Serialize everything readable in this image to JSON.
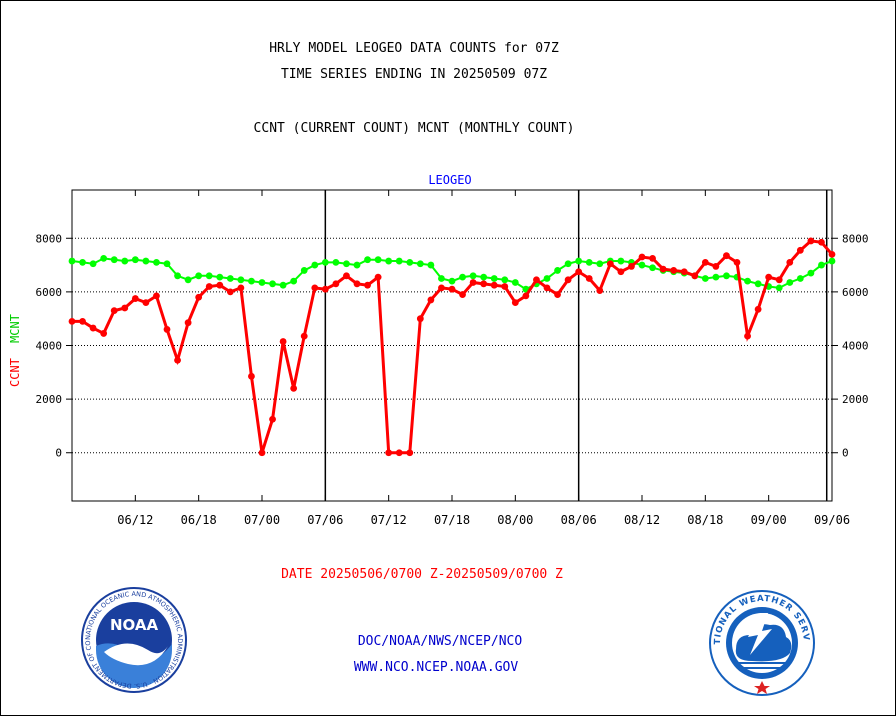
{
  "header": {
    "line1": "HRLY MODEL LEOGEO DATA COUNTS for 07Z",
    "line2": "TIME SERIES ENDING IN 20250509 07Z",
    "line3": "CCNT (CURRENT COUNT) MCNT (MONTHLY COUNT)"
  },
  "chart_data": {
    "type": "line",
    "title": "LEOGEO",
    "ylabel_ccnt": "CCNT",
    "ylabel_mcnt": "MCNT",
    "ylim": [
      -1800,
      9800
    ],
    "yticks": [
      0,
      2000,
      4000,
      6000,
      8000
    ],
    "ytick_labels": [
      "0",
      "2000",
      "4000",
      "6000",
      "8000"
    ],
    "xlim": [
      0,
      72
    ],
    "xticks": [
      6,
      12,
      18,
      24,
      30,
      36,
      42,
      48,
      54,
      60,
      66,
      72
    ],
    "xtick_labels": [
      "06/12",
      "06/18",
      "07/00",
      "07/06",
      "07/12",
      "07/18",
      "08/00",
      "08/06",
      "08/12",
      "08/18",
      "09/00",
      "09/06"
    ],
    "day_boundaries": [
      24,
      48,
      71.5
    ],
    "grid": true,
    "series": [
      {
        "name": "CCNT",
        "color": "#ff0000",
        "values": [
          4900,
          4900,
          4650,
          4450,
          5300,
          5400,
          5750,
          5600,
          5850,
          4600,
          3450,
          4850,
          5800,
          6200,
          6250,
          6000,
          6150,
          2850,
          0,
          1250,
          4150,
          2400,
          4350,
          6150,
          6100,
          6300,
          6600,
          6300,
          6250,
          6550,
          0,
          0,
          0,
          5000,
          5700,
          6150,
          6100,
          5900,
          6350,
          6300,
          6250,
          6200,
          5600,
          5850,
          6450,
          6150,
          5900,
          6450,
          6750,
          6500,
          6050,
          7050,
          6750,
          6950,
          7300,
          7250,
          6850,
          6800,
          6750,
          6600,
          7100,
          6950,
          7350,
          7100,
          4350,
          5350,
          6550,
          6450,
          7100,
          7550,
          7900,
          7850,
          7400
        ]
      },
      {
        "name": "MCNT",
        "color": "#00ff00",
        "values": [
          7150,
          7100,
          7050,
          7250,
          7200,
          7150,
          7200,
          7150,
          7100,
          7050,
          6600,
          6450,
          6600,
          6600,
          6550,
          6500,
          6450,
          6400,
          6350,
          6300,
          6250,
          6400,
          6800,
          7000,
          7100,
          7100,
          7050,
          7000,
          7200,
          7200,
          7150,
          7150,
          7100,
          7050,
          7000,
          6500,
          6400,
          6550,
          6600,
          6550,
          6500,
          6450,
          6350,
          6100,
          6300,
          6500,
          6800,
          7050,
          7150,
          7100,
          7050,
          7150,
          7150,
          7100,
          7000,
          6900,
          6800,
          6750,
          6700,
          6600,
          6500,
          6550,
          6600,
          6550,
          6400,
          6300,
          6200,
          6150,
          6350,
          6500,
          6700,
          7000,
          7150
        ]
      }
    ]
  },
  "footer": {
    "date_range": "DATE 20250506/0700 Z-20250509/0700 Z",
    "link_path": "DOC/NOAA/NWS/NCEP/NCO",
    "link_site": "WWW.NCO.NCEP.NOAA.GOV",
    "noaa_badge": "NOAA",
    "noaa_ring_text": "NATIONAL OCEANIC AND ATMOSPHERIC ADMINISTRATION · U.S. DEPARTMENT OF COMMERCE ·",
    "nws_ring_text": "NATIONAL WEATHER SERVICE"
  },
  "colors": {
    "ccnt": "#ff0000",
    "mcnt": "#00ff00",
    "chart_title": "#0000ff",
    "link": "#0000cc",
    "noaa_blue": "#1a3f9e",
    "nws_blue": "#1560bd"
  }
}
